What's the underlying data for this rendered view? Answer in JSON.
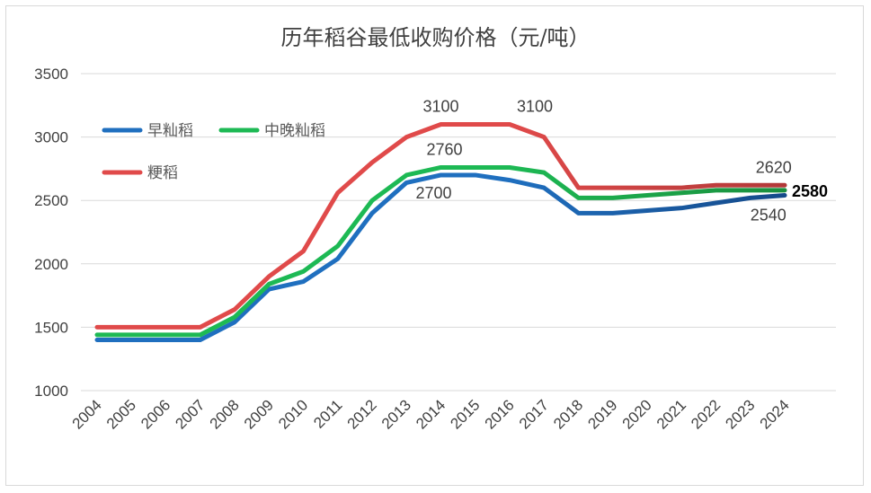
{
  "chart_data": {
    "type": "line",
    "title": "历年稻谷最低收购价格（元/吨）",
    "categories": [
      "2004",
      "2005",
      "2006",
      "2007",
      "2008",
      "2009",
      "2010",
      "2011",
      "2012",
      "2013",
      "2014",
      "2015",
      "2016",
      "2017",
      "2018",
      "2019",
      "2020",
      "2021",
      "2022",
      "2023",
      "2024"
    ],
    "ylim": [
      1000,
      3500
    ],
    "yticks": [
      "1000",
      "1500",
      "2000",
      "2500",
      "3000",
      "3500"
    ],
    "grid": true,
    "legend_position": "top-left",
    "series": [
      {
        "name": "早籼稻",
        "color": "#1f6fbf",
        "color_end": "#154a8a",
        "values": [
          1400,
          1400,
          1400,
          1400,
          1540,
          1800,
          1860,
          2040,
          2400,
          2640,
          2700,
          2700,
          2660,
          2600,
          2400,
          2400,
          2420,
          2440,
          2480,
          2520,
          2540
        ]
      },
      {
        "name": "中晚籼稻",
        "color": "#1db954",
        "color_end": "#1a8f3e",
        "values": [
          1440,
          1440,
          1440,
          1440,
          1580,
          1840,
          1940,
          2140,
          2500,
          2700,
          2760,
          2760,
          2760,
          2720,
          2520,
          2520,
          2540,
          2560,
          2580,
          2580,
          2580
        ]
      },
      {
        "name": "粳稻",
        "color": "#e04a4a",
        "color_end": "#b23838",
        "values": [
          1500,
          1500,
          1500,
          1500,
          1640,
          1900,
          2100,
          2560,
          2800,
          3000,
          3100,
          3100,
          3100,
          3000,
          2600,
          2600,
          2600,
          2600,
          2620,
          2620,
          2620
        ]
      }
    ],
    "annotations": [
      {
        "text": "3100",
        "x": "2014",
        "y": 3100,
        "pos": "above"
      },
      {
        "text": "3100",
        "x": "2016",
        "y": 3100,
        "pos": "above-right"
      },
      {
        "text": "2760",
        "x": "2014",
        "y": 2760,
        "pos": "above"
      },
      {
        "text": "2700",
        "x": "2014",
        "y": 2700,
        "pos": "below"
      },
      {
        "text": "2620",
        "x": "2023",
        "y": 2620,
        "pos": "above"
      },
      {
        "text": "2580",
        "x": "2024",
        "y": 2580,
        "pos": "right",
        "bold": true
      },
      {
        "text": "2540",
        "x": "2023",
        "y": 2540,
        "pos": "below"
      }
    ]
  }
}
